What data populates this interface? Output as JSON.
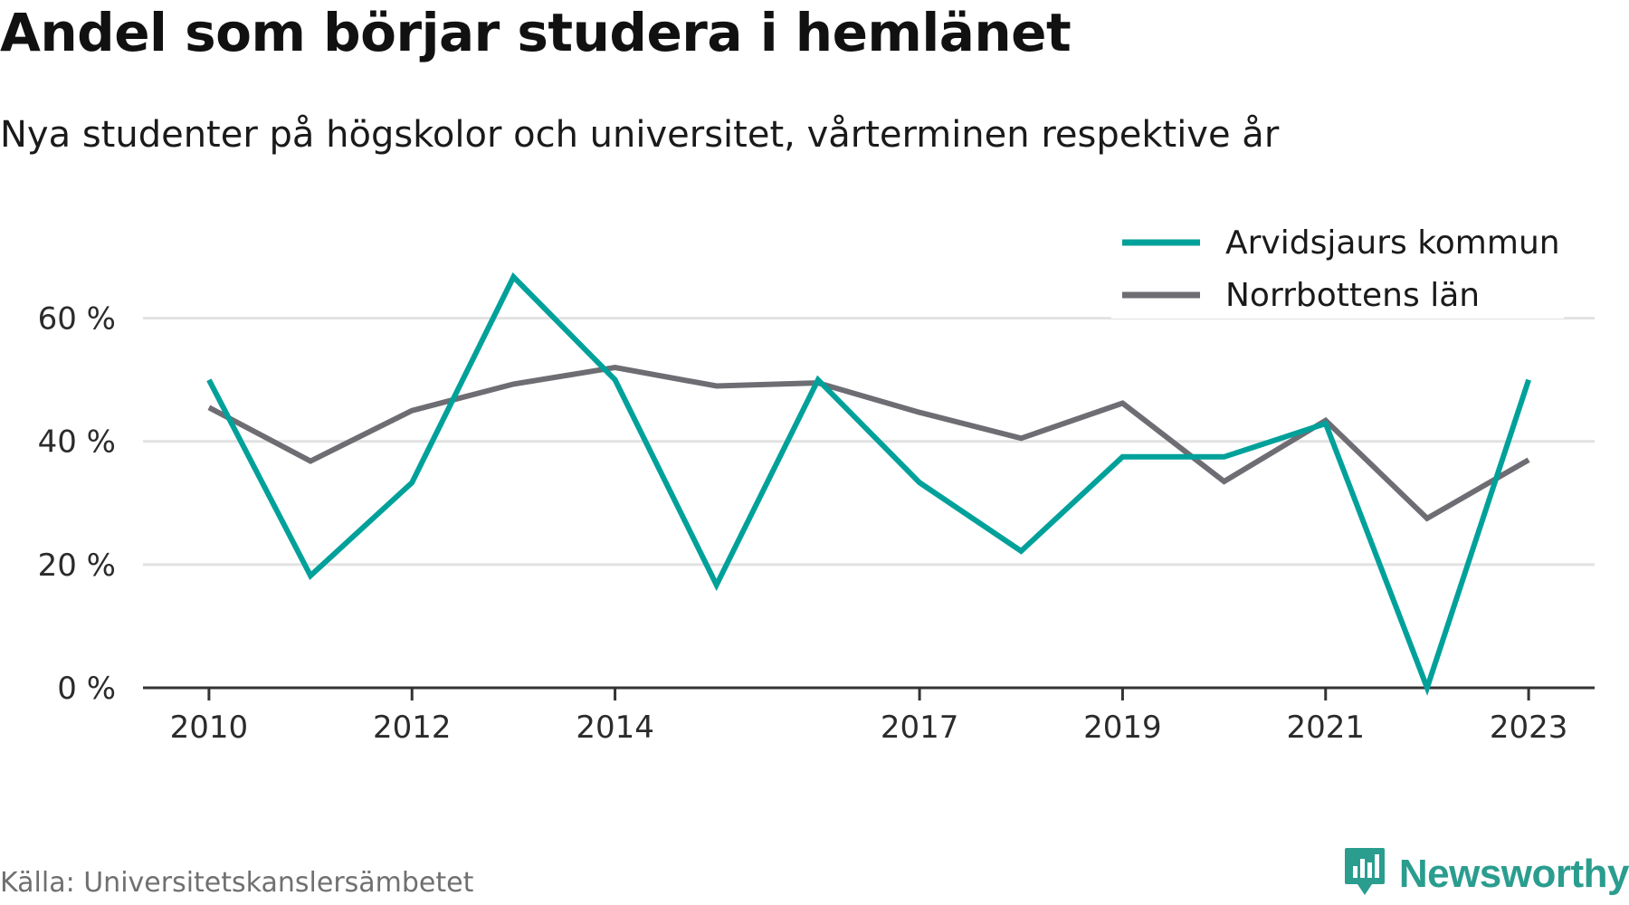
{
  "header": {
    "title": "Andel som börjar studera i hemlänet",
    "subtitle": "Nya studenter på högskolor och universitet, vårterminen respektive år"
  },
  "footer": {
    "source": "Källa: Universitetskanslersämbetet",
    "brand_name": "Newsworthy",
    "brand_icon": "bar-chart-badge-icon"
  },
  "colors": {
    "series_primary": "#00a19a",
    "series_secondary": "#6e6d73",
    "gridline": "#e2e2e2",
    "axis": "#333333",
    "brand": "#2a9d8f"
  },
  "chart_data": {
    "type": "line",
    "title": "Andel som börjar studera i hemlänet",
    "subtitle": "Nya studenter på högskolor och universitet, vårterminen respektive år",
    "x": [
      2010,
      2011,
      2012,
      2013,
      2014,
      2015,
      2016,
      2017,
      2018,
      2019,
      2020,
      2021,
      2022,
      2023
    ],
    "x_tick_values": [
      2010,
      2012,
      2014,
      2017,
      2019,
      2021,
      2023
    ],
    "x_tick_labels": [
      "2010",
      "2012",
      "2014",
      "2017",
      "2019",
      "2021",
      "2023"
    ],
    "y_tick_values": [
      0,
      20,
      40,
      60
    ],
    "y_tick_labels": [
      "0 %",
      "20 %",
      "40 %",
      "60 %"
    ],
    "ylim": [
      0,
      66.7
    ],
    "xlim": [
      2009.35,
      2023.65
    ],
    "grid": true,
    "legend_position": "top-right",
    "series": [
      {
        "name": "Arvidsjaurs kommun",
        "color": "#00a19a",
        "values": [
          50.0,
          18.2,
          33.3,
          66.7,
          50.0,
          16.7,
          50.0,
          33.3,
          22.2,
          37.5,
          37.5,
          42.9,
          0.0,
          50.0
        ]
      },
      {
        "name": "Norrbottens län",
        "color": "#6e6d73",
        "values": [
          45.5,
          36.8,
          45.0,
          49.3,
          52.0,
          49.0,
          49.5,
          44.7,
          40.5,
          46.2,
          33.5,
          43.4,
          27.5,
          37.0
        ]
      }
    ]
  }
}
